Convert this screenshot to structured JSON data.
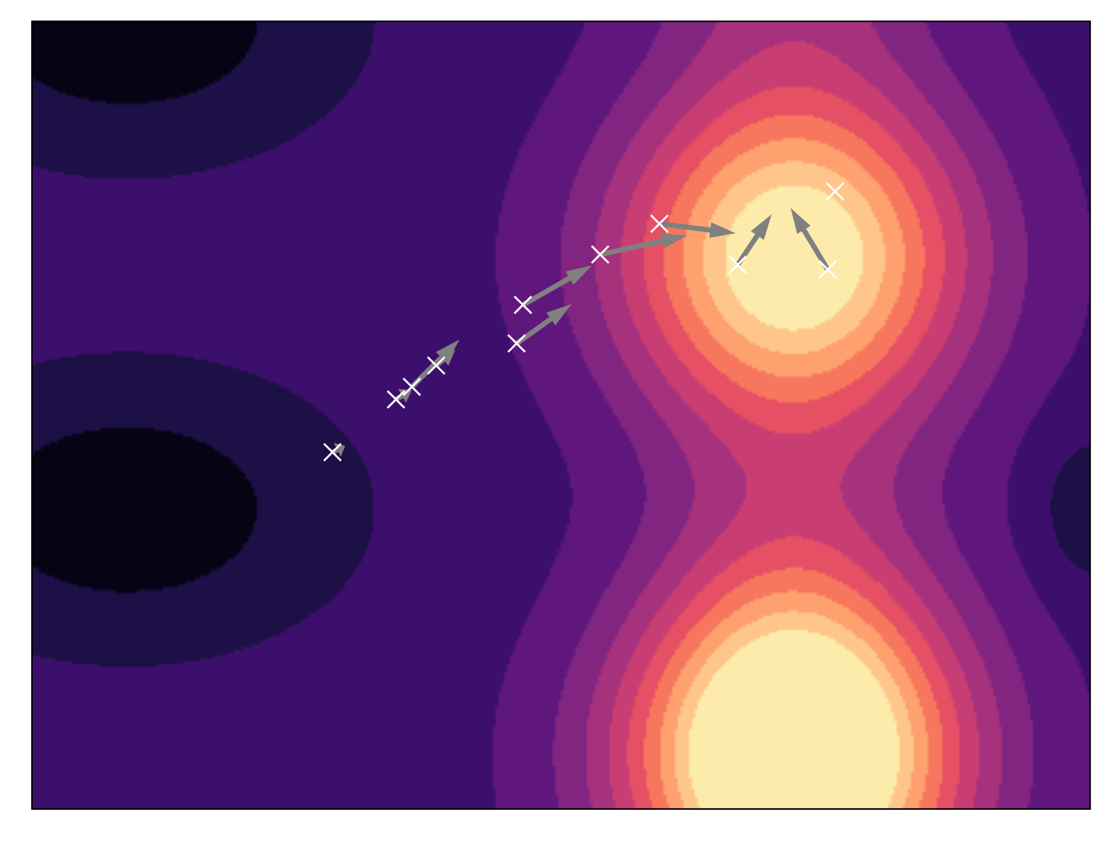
{
  "chart_data": {
    "type": "contour",
    "title": "",
    "xlabel": "",
    "ylabel": "",
    "ticks_visible": false,
    "grid": false,
    "legend": "none",
    "colormap": "magma",
    "contour_levels": 11,
    "level_colors": [
      "#050414",
      "#1c1046",
      "#3d0f6c",
      "#5f177e",
      "#822581",
      "#a6317d",
      "#c93e72",
      "#e55064",
      "#f6775e",
      "#fea16e",
      "#fec68a",
      "#fcebaa"
    ],
    "arrow_color": "#808080",
    "marker_color": "#ffffff",
    "peaks": [
      {
        "x": 0.72,
        "y": 0.7,
        "value": 1.0
      },
      {
        "x": 0.72,
        "y": 0.07,
        "value": 1.0
      }
    ],
    "troughs": [
      {
        "x": 0.09,
        "y": 1.0
      },
      {
        "x": 0.09,
        "y": 0.38
      }
    ],
    "particles": [
      {
        "x": 0.284,
        "y": 0.453,
        "dx": 0.012,
        "dy": 0.008
      },
      {
        "x": 0.344,
        "y": 0.52,
        "dx": 0.015,
        "dy": 0.012
      },
      {
        "x": 0.359,
        "y": 0.536,
        "dx": 0.045,
        "dy": 0.06
      },
      {
        "x": 0.382,
        "y": 0.563,
        "dx": 0.018,
        "dy": 0.02
      },
      {
        "x": 0.458,
        "y": 0.591,
        "dx": 0.052,
        "dy": 0.05
      },
      {
        "x": 0.464,
        "y": 0.64,
        "dx": 0.065,
        "dy": 0.05
      },
      {
        "x": 0.537,
        "y": 0.704,
        "dx": 0.082,
        "dy": 0.024
      },
      {
        "x": 0.593,
        "y": 0.743,
        "dx": 0.072,
        "dy": -0.012
      },
      {
        "x": 0.667,
        "y": 0.691,
        "dx": 0.032,
        "dy": 0.064
      },
      {
        "x": 0.752,
        "y": 0.685,
        "dx": -0.035,
        "dy": 0.078
      },
      {
        "x": 0.759,
        "y": 0.784,
        "dx": 0,
        "dy": 0
      }
    ]
  }
}
